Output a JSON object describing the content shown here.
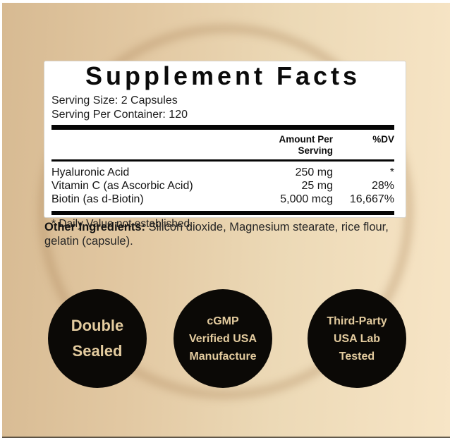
{
  "panel": {
    "title": "Supplement Facts",
    "serving_size": "Serving Size: 2 Capsules",
    "serving_per_container": "Serving Per Container: 120",
    "header": {
      "amount": "Amount Per Serving",
      "dv": "%DV"
    },
    "rows": [
      {
        "name": "Hyaluronic Acid",
        "amount": "250 mg",
        "dv": "*"
      },
      {
        "name": "Vitamin C (as Ascorbic Acid)",
        "amount": "25 mg",
        "dv": "28%"
      },
      {
        "name": "Biotin (as d-Biotin)",
        "amount": "5,000 mcg",
        "dv": "16,667%"
      }
    ],
    "footnote": "* Daily Value not established."
  },
  "other_ingredients": {
    "label": "Other Ingredients:",
    "text": " Silicon dioxide, Magnesium stearate, rice flour, gelatin (capsule)."
  },
  "badges": [
    {
      "id": "double-sealed",
      "lines": [
        "Double",
        "Sealed"
      ]
    },
    {
      "id": "cgmp-verified",
      "lines": [
        "cGMP",
        "Verified USA",
        "Manufacture"
      ]
    },
    {
      "id": "third-party-tested",
      "lines": [
        "Third-Party",
        "USA Lab",
        "Tested"
      ]
    }
  ],
  "colors": {
    "background_left": "#d7ba92",
    "background_right": "#f7e5c6",
    "ring": "#ac855a",
    "panel_background": "#ffffff",
    "panel_text": "#161616",
    "divider": "#060606",
    "badge_background": "#0b0906",
    "badge_text": "#e3cb9e"
  }
}
